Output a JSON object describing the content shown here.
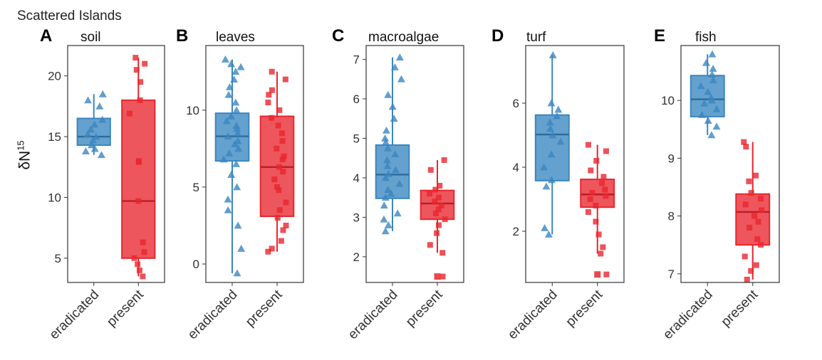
{
  "figure": {
    "title": "Scattered Islands",
    "ylabel_base": "δN",
    "ylabel_sup": "15"
  },
  "colors": {
    "eradicated": "#3a86c0",
    "eradicated_fill": "#3a86c0",
    "present": "#e8262e",
    "present_fill": "#e8262e",
    "panel_border": "#333333",
    "tick_text": "#333333"
  },
  "chart_data": [
    {
      "type": "box",
      "letter": "A",
      "title": "soil",
      "categories": [
        "eradicated",
        "present"
      ],
      "ylim": [
        3,
        22.5
      ],
      "yticks": [
        5,
        10,
        15,
        20
      ],
      "boxes": [
        {
          "group": "eradicated",
          "min": 13.5,
          "q1": 14.3,
          "median": 15.0,
          "q3": 16.5,
          "max": 18.5,
          "points": [
            13.5,
            13.8,
            14.0,
            14.3,
            14.7,
            15.0,
            15.2,
            15.6,
            16.0,
            16.4,
            17.5,
            18.0,
            18.5
          ]
        },
        {
          "group": "present",
          "min": 3.5,
          "q1": 5.0,
          "median": 9.7,
          "q3": 18.0,
          "max": 21.5,
          "points": [
            3.5,
            4.0,
            4.5,
            5.0,
            5.5,
            6.3,
            9.7,
            12.9,
            13.0,
            16.9,
            18.0,
            19.5,
            20.5,
            21.0,
            21.5
          ]
        }
      ]
    },
    {
      "type": "box",
      "letter": "B",
      "title": "leaves",
      "categories": [
        "eradicated",
        "present"
      ],
      "ylim": [
        -1.2,
        14.2
      ],
      "yticks": [
        0,
        5,
        10
      ],
      "boxes": [
        {
          "group": "eradicated",
          "min": -0.6,
          "q1": 6.7,
          "median": 8.3,
          "q3": 9.8,
          "max": 13.3,
          "points": [
            -0.6,
            1.0,
            2.5,
            3.5,
            4.2,
            5.0,
            5.8,
            6.5,
            6.8,
            7.2,
            7.5,
            7.8,
            8.0,
            8.3,
            8.5,
            8.8,
            9.0,
            9.3,
            9.6,
            10.0,
            10.5,
            11.0,
            11.5,
            12.0,
            12.5,
            12.8,
            13.0,
            13.3
          ]
        },
        {
          "group": "present",
          "min": 0.8,
          "q1": 3.1,
          "median": 6.3,
          "q3": 9.6,
          "max": 12.5,
          "points": [
            0.8,
            1.0,
            1.5,
            2.2,
            2.5,
            3.0,
            3.5,
            4.0,
            4.8,
            5.0,
            5.5,
            6.0,
            6.3,
            6.8,
            7.0,
            7.5,
            8.0,
            8.5,
            9.0,
            9.5,
            10.0,
            10.5,
            11.0,
            11.3,
            12.0,
            12.5
          ]
        }
      ]
    },
    {
      "type": "box",
      "letter": "C",
      "title": "macroalgae",
      "categories": [
        "eradicated",
        "present"
      ],
      "ylim": [
        1.35,
        7.35
      ],
      "yticks": [
        2,
        3,
        4,
        5,
        6,
        7
      ],
      "boxes": [
        {
          "group": "eradicated",
          "min": 2.65,
          "q1": 3.48,
          "median": 4.08,
          "q3": 4.83,
          "max": 7.05,
          "points": [
            2.65,
            2.8,
            2.95,
            3.1,
            3.3,
            3.5,
            3.6,
            3.7,
            3.85,
            4.0,
            4.1,
            4.2,
            4.3,
            4.45,
            4.6,
            4.75,
            4.9,
            5.0,
            5.2,
            5.5,
            5.8,
            6.1,
            6.5,
            6.8,
            7.05
          ]
        },
        {
          "group": "present",
          "min": 2.1,
          "q1": 2.95,
          "median": 3.35,
          "q3": 3.68,
          "max": 4.45,
          "outliers": [
            1.5
          ],
          "points": [
            1.5,
            2.1,
            2.3,
            2.6,
            2.8,
            2.95,
            3.1,
            3.2,
            3.3,
            3.4,
            3.5,
            3.6,
            3.7,
            3.8,
            4.2,
            4.45
          ]
        }
      ]
    },
    {
      "type": "box",
      "letter": "D",
      "title": "turf",
      "categories": [
        "eradicated",
        "present"
      ],
      "ylim": [
        0.4,
        7.8
      ],
      "yticks": [
        2,
        4,
        6
      ],
      "boxes": [
        {
          "group": "eradicated",
          "min": 1.9,
          "q1": 3.58,
          "median": 5.02,
          "q3": 5.63,
          "max": 7.5,
          "points": [
            1.9,
            2.1,
            3.4,
            3.6,
            4.0,
            4.4,
            4.8,
            5.0,
            5.2,
            5.4,
            5.6,
            5.8,
            6.0,
            7.5
          ]
        },
        {
          "group": "present",
          "min": 1.3,
          "q1": 2.75,
          "median": 3.15,
          "q3": 3.62,
          "max": 4.7,
          "outliers": [
            0.65
          ],
          "points": [
            0.65,
            1.3,
            1.5,
            1.9,
            2.3,
            2.6,
            2.8,
            3.0,
            3.1,
            3.2,
            3.3,
            3.5,
            3.7,
            3.9,
            4.2,
            4.5,
            4.7
          ]
        }
      ]
    },
    {
      "type": "box",
      "letter": "E",
      "title": "fish",
      "categories": [
        "eradicated",
        "present"
      ],
      "ylim": [
        6.85,
        10.95
      ],
      "yticks": [
        7,
        8,
        9,
        10
      ],
      "boxes": [
        {
          "group": "eradicated",
          "min": 9.4,
          "q1": 9.72,
          "median": 10.02,
          "q3": 10.43,
          "max": 10.8,
          "points": [
            9.4,
            9.55,
            9.65,
            9.75,
            9.85,
            9.95,
            10.0,
            10.05,
            10.15,
            10.25,
            10.35,
            10.45,
            10.55,
            10.65,
            10.8
          ]
        },
        {
          "group": "present",
          "min": 6.9,
          "q1": 7.5,
          "median": 8.07,
          "q3": 8.38,
          "max": 9.28,
          "points": [
            6.9,
            7.05,
            7.15,
            7.3,
            7.5,
            7.6,
            7.8,
            7.9,
            8.0,
            8.1,
            8.2,
            8.3,
            8.4,
            8.6,
            8.7,
            9.2,
            9.28
          ]
        }
      ]
    }
  ]
}
